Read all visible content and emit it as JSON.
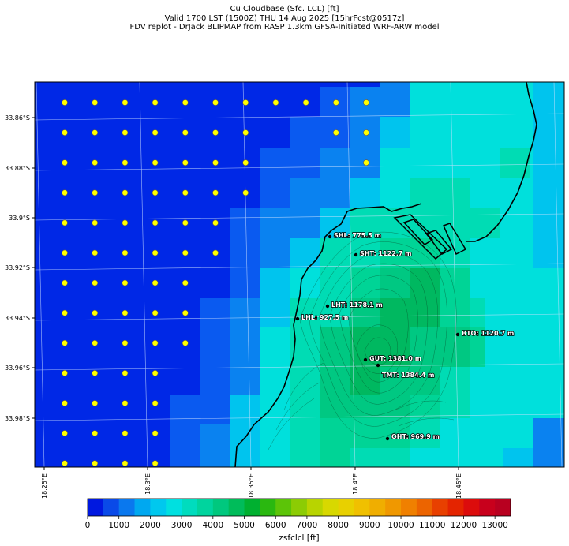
{
  "title": {
    "line1": "Cu Cloudbase (Sfc. LCL) [ft]",
    "line2": "Valid 1700 LST (1500Z) THU 14 Aug 2025 [15hrFcst@0517z]",
    "line3": "FDV replot - DrJack BLIPMAP from RASP 1.3km GFSA-Initiated WRF-ARW model"
  },
  "map": {
    "lat_labels": [
      "33.86°S",
      "33.88°S",
      "33.9°S",
      "33.92°S",
      "33.94°S",
      "33.96°S",
      "33.98°S"
    ],
    "lon_labels": [
      "18.25°E",
      "18.3°E",
      "18.35°E",
      "18.4°E",
      "18.45°E"
    ],
    "sites": [
      {
        "label": "SHL: 775.5 m"
      },
      {
        "label": "SHT: 1122.7 m"
      },
      {
        "label": "LHT: 1178.1 m"
      },
      {
        "label": "LHL: 927.5 m"
      },
      {
        "label": "BTO: 1120.7 m"
      },
      {
        "label": "GUT: 1381.0 m"
      },
      {
        "label": "TMT: 1384.4 m"
      },
      {
        "label": "OHT: 969.9 m"
      }
    ],
    "no_cloud_marker": "yellow-dot",
    "colors": {
      "ocean_low": "#0028e6",
      "level_1000": "#0a5af0",
      "level_1500": "#0a82f0",
      "level_2000": "#00c4ee",
      "level_2500": "#00e0dc",
      "level_3000": "#00dcb4",
      "level_3500": "#00d496",
      "level_4000": "#00c882",
      "level_4500": "#00b860",
      "marker": "#ffff00"
    }
  },
  "colorbar": {
    "label": "zsfclcl [ft]",
    "ticks": [
      "0",
      "1000",
      "2000",
      "3000",
      "4000",
      "5000",
      "6000",
      "7000",
      "8000",
      "9000",
      "10000",
      "11000",
      "12000",
      "13000"
    ],
    "colors": [
      "#0018e0",
      "#0a4ae8",
      "#0a78ee",
      "#00a8f0",
      "#00c8ee",
      "#00e0e0",
      "#00dcbe",
      "#00d49e",
      "#00c87e",
      "#00bc5a",
      "#00b030",
      "#2ab810",
      "#5cc408",
      "#8ccc04",
      "#b8d400",
      "#d8d800",
      "#e8d000",
      "#f0c000",
      "#f0ae00",
      "#f09800",
      "#f08000",
      "#ec6400",
      "#e84000",
      "#e42400",
      "#dc0c0c",
      "#c8001c",
      "#b80020"
    ]
  }
}
